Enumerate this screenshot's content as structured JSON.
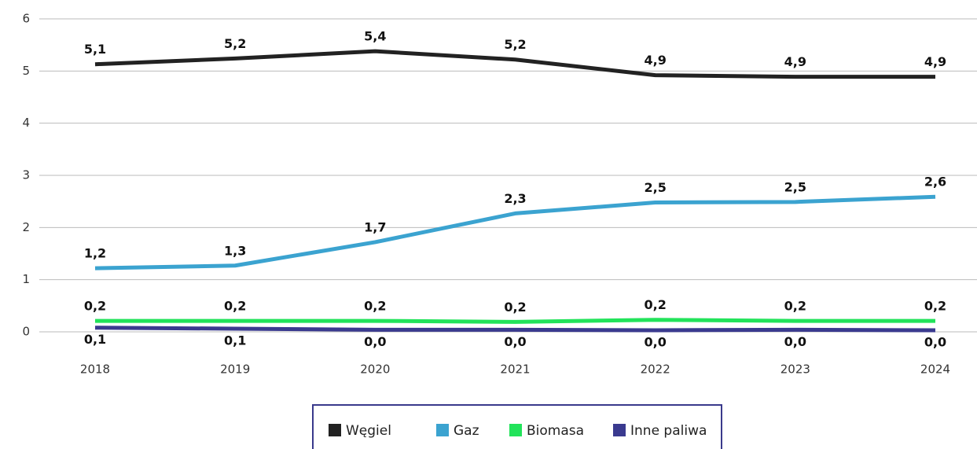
{
  "chart_data": {
    "type": "line",
    "categories": [
      "2018",
      "2019",
      "2020",
      "2021",
      "2022",
      "2023",
      "2024"
    ],
    "series": [
      {
        "name": "Węgiel",
        "color": "#222222",
        "values": [
          5.13,
          5.24,
          5.38,
          5.22,
          4.92,
          4.89,
          4.89
        ],
        "value_labels": [
          "5,1",
          "5,2",
          "5,4",
          "5,2",
          "4,9",
          "4,9",
          "4,9"
        ]
      },
      {
        "name": "Gaz",
        "color": "#3ba3d0",
        "values": [
          1.22,
          1.27,
          1.72,
          2.27,
          2.48,
          2.49,
          2.59
        ],
        "value_labels": [
          "1,2",
          "1,3",
          "1,7",
          "2,3",
          "2,5",
          "2,5",
          "2,6"
        ]
      },
      {
        "name": "Biomasa",
        "color": "#22e35a",
        "values": [
          0.21,
          0.21,
          0.21,
          0.19,
          0.23,
          0.21,
          0.21
        ],
        "value_labels": [
          "0,2",
          "0,2",
          "0,2",
          "0,2",
          "0,2",
          "0,2",
          "0,2"
        ]
      },
      {
        "name": "Inne paliwa",
        "color": "#3a3a8f",
        "values": [
          0.08,
          0.06,
          0.04,
          0.04,
          0.03,
          0.04,
          0.03
        ],
        "value_labels": [
          "0,1",
          "0,1",
          "0,0",
          "0,0",
          "0,0",
          "0,0",
          "0,0"
        ]
      }
    ],
    "ylim": [
      0,
      6
    ],
    "yticks": [
      0,
      1,
      2,
      3,
      4,
      5,
      6
    ],
    "grid": true,
    "legend": "bottom"
  }
}
